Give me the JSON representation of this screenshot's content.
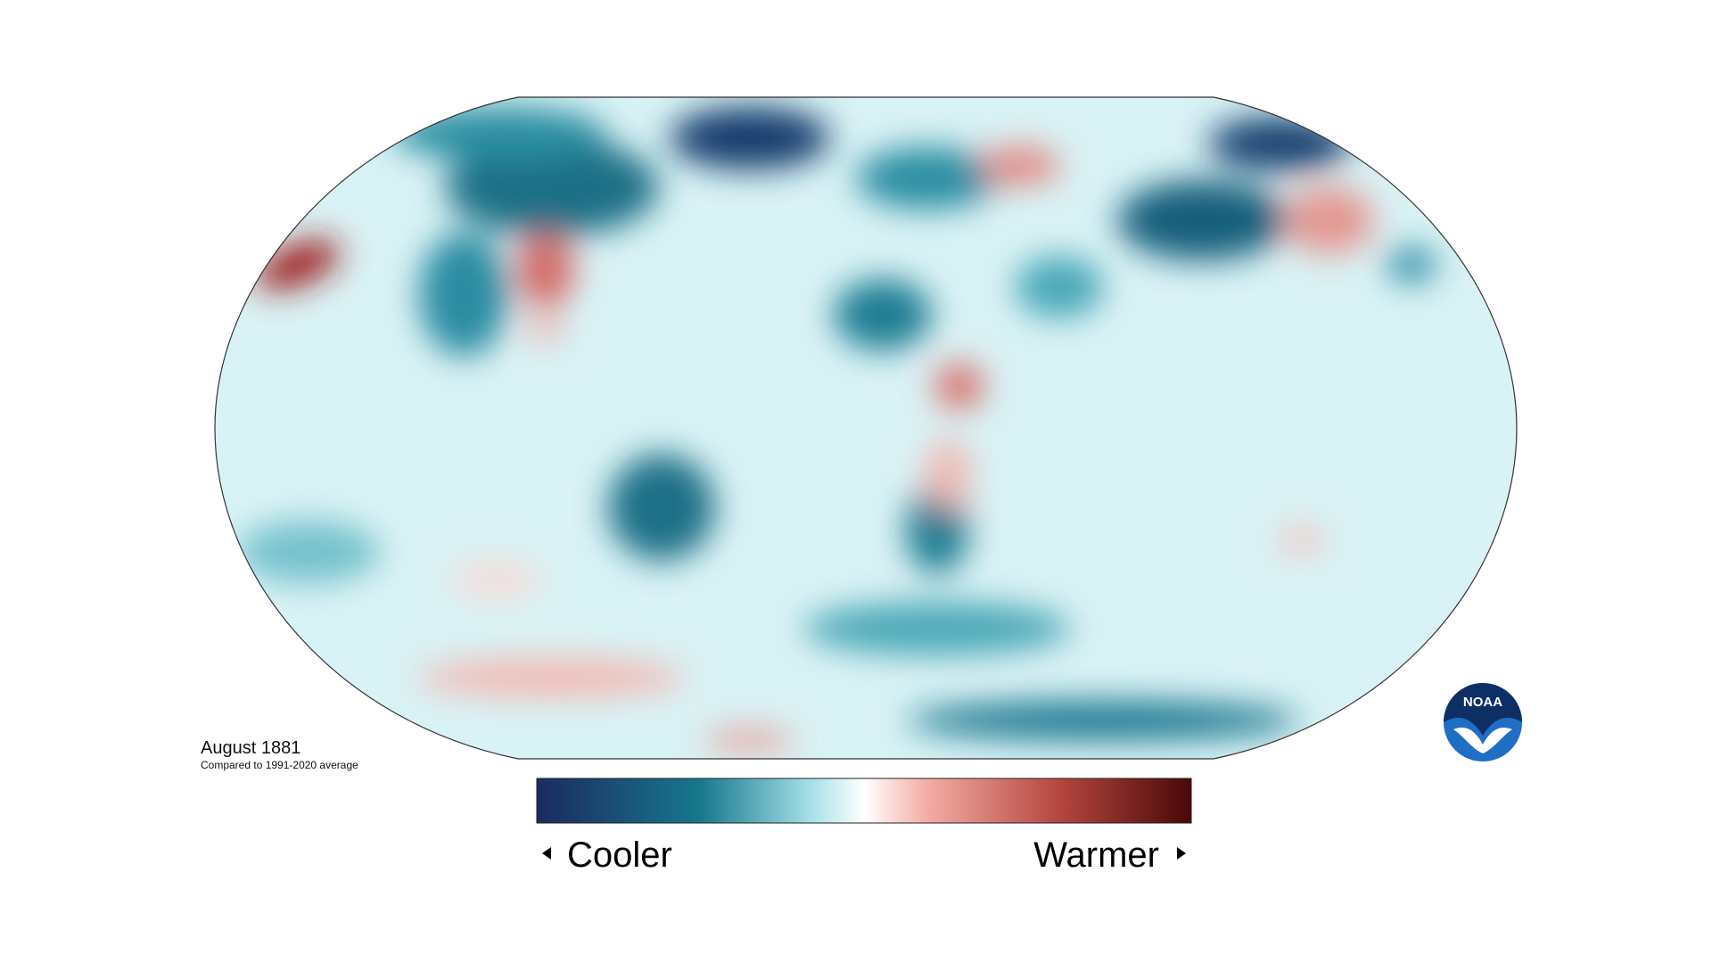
{
  "map": {
    "title": "August 1881",
    "subtitle": "Compared to 1991-2020 average"
  },
  "legend": {
    "low_label": "Cooler",
    "high_label": "Warmer"
  },
  "logo": {
    "label": "NOAA"
  }
}
